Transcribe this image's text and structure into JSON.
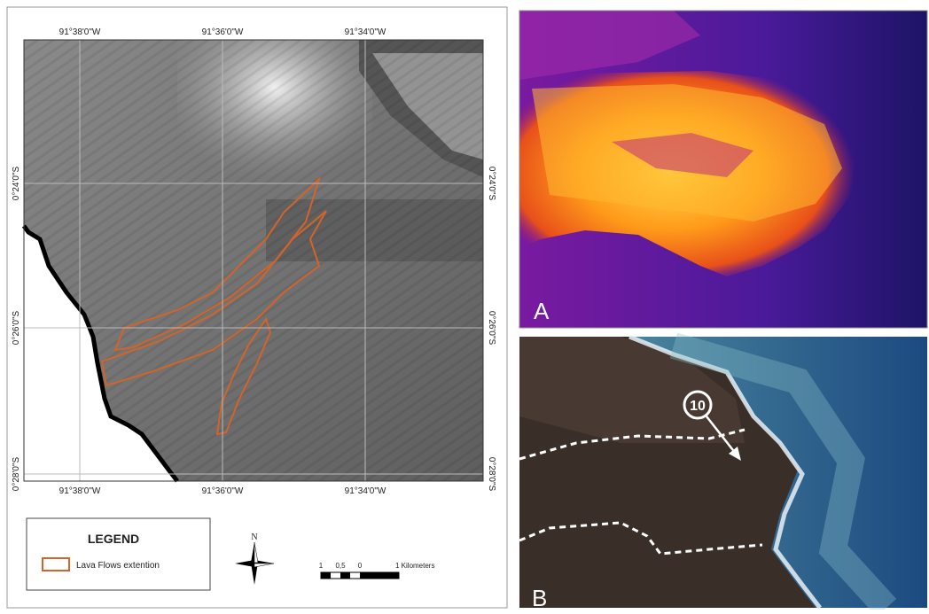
{
  "map": {
    "top_labels": [
      "91°38'0\"W",
      "91°36'0\"W",
      "91°34'0\"W"
    ],
    "bottom_labels": [
      "91°38'0\"W",
      "91°36'0\"W",
      "91°34'0\"W"
    ],
    "left_labels": [
      "0°24'0\"S",
      "0°26'0\"S",
      "0°28'0\"S"
    ],
    "right_labels": [
      "0°24'0\"S",
      "0°26'0\"S",
      "0°28'0\"S"
    ]
  },
  "legend": {
    "title": "LEGEND",
    "items": [
      "Lava Flows extention"
    ]
  },
  "north": "N",
  "scale": {
    "labels": [
      "1",
      "0,5",
      "0",
      "1 Kilometers"
    ]
  },
  "panels": [
    {
      "label": "A"
    },
    {
      "label": "B",
      "callout": "10"
    }
  ]
}
